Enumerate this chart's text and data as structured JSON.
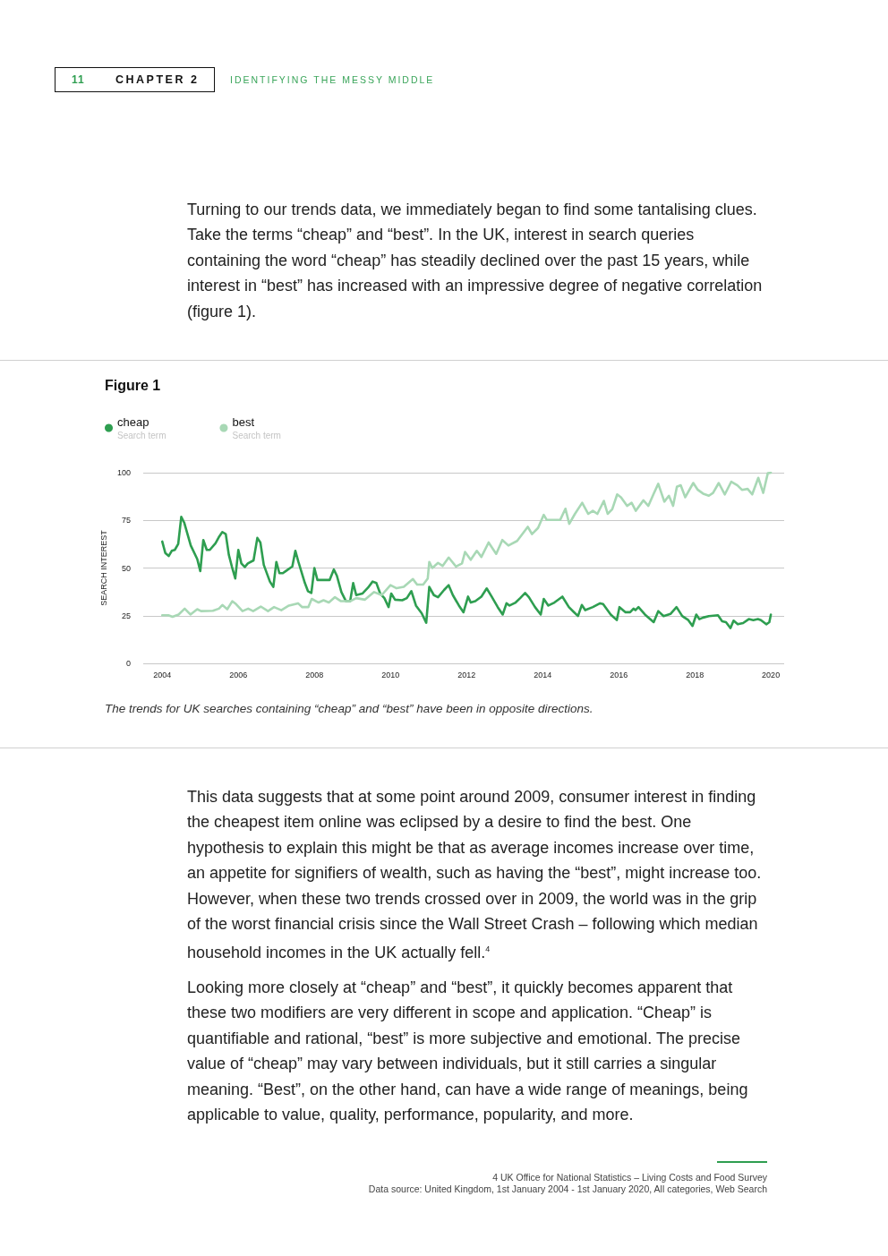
{
  "chart_data": {
    "type": "line",
    "title": "Figure 1",
    "ylabel": "SEARCH INTEREST",
    "xlim": [
      2003.5,
      2020.35
    ],
    "xticks": [
      2004,
      2006,
      2008,
      2010,
      2012,
      2014,
      2016,
      2018,
      2020
    ],
    "ylim": [
      0,
      100
    ],
    "yticks": [
      0,
      25,
      50,
      75,
      100
    ],
    "grid": "y",
    "legend": "top left",
    "marker": "none",
    "line_style": "solid",
    "annotations": [
      "11",
      "CHAPTER 2",
      "IDENTIFYING THE MESSY MIDDLE",
      "Turning to our trends data, we immediately began to find some tantalising clues. Take the terms “cheap” and “best”. In the UK, interest in search queries containing the word “cheap” has steadily declined over the past 15 years, while interest in “best” has increased with an impressive degree of negative correlation (figure 1).",
      "Search term",
      "Search term",
      "The trends for UK searches containing “cheap” and “best” have been in opposite directions.",
      "This data suggests that at some point around 2009, consumer interest in finding the cheapest item online was eclipsed by a desire to find the best. One hypothesis to explain this might be that as average incomes increase over time, an appetite for signifiers of wealth, such as having the “best”, might increase too. However, when these two trends crossed over in 2009, the world was in the grip of the worst financial crisis since the Wall Street Crash – following which median household incomes in the UK actually fell.$^{4}$",
      "Looking more closely at “cheap” and “best”, it quickly becomes apparent that these two modifiers are very different in scope and application. “Cheap” is quantifiable and rational, “best” is more subjective and emotional. The precise value of “cheap” may vary between individuals, but it still carries a singular meaning. “Best”, on the other hand, can have a wide range of meanings, being applicable to value, quality, performance, popularity, and more.",
      "4 UK Office for National Statistics – Living Costs and Food Survey",
      "Data source: United Kingdom, 1st January 2004 - 1st January 2020, All categories, Web Search"
    ],
    "series": [
      {
        "name": "cheap",
        "color": "#2e9e50",
        "x": [
          2004.0,
          2004.08,
          2004.17,
          2004.25,
          2004.33,
          2004.42,
          2004.5,
          2004.58,
          2004.75,
          2004.92,
          2005.0,
          2005.08,
          2005.17,
          2005.25,
          2005.4,
          2005.5,
          2005.58,
          2005.67,
          2005.75,
          2005.83,
          2005.92,
          2006.0,
          2006.08,
          2006.17,
          2006.25,
          2006.4,
          2006.5,
          2006.58,
          2006.67,
          2006.83,
          2006.92,
          2007.0,
          2007.08,
          2007.17,
          2007.25,
          2007.42,
          2007.5,
          2007.58,
          2007.75,
          2007.83,
          2007.92,
          2008.0,
          2008.08,
          2008.25,
          2008.4,
          2008.51,
          2008.59,
          2008.71,
          2008.83,
          2008.94,
          2009.02,
          2009.1,
          2009.26,
          2009.41,
          2009.53,
          2009.63,
          2009.73,
          2009.84,
          2009.95,
          2010.02,
          2010.12,
          2010.31,
          2010.43,
          2010.55,
          2010.67,
          2010.82,
          2010.94,
          2011.02,
          2011.14,
          2011.25,
          2011.41,
          2011.53,
          2011.64,
          2011.8,
          2011.92,
          2012.04,
          2012.11,
          2012.23,
          2012.39,
          2012.53,
          2012.66,
          2012.82,
          2012.95,
          2013.05,
          2013.13,
          2013.29,
          2013.41,
          2013.54,
          2013.64,
          2013.8,
          2013.95,
          2014.03,
          2014.15,
          2014.31,
          2014.52,
          2014.69,
          2014.81,
          2014.93,
          2015.03,
          2015.12,
          2015.32,
          2015.51,
          2015.59,
          2015.79,
          2015.95,
          2016.02,
          2016.18,
          2016.3,
          2016.39,
          2016.44,
          2016.52,
          2016.69,
          2016.92,
          2017.04,
          2017.18,
          2017.36,
          2017.52,
          2017.67,
          2017.83,
          2017.94,
          2018.04,
          2018.12,
          2018.22,
          2018.37,
          2018.61,
          2018.72,
          2018.82,
          2018.94,
          2019.02,
          2019.13,
          2019.27,
          2019.42,
          2019.54,
          2019.66,
          2019.74,
          2019.88,
          2019.96,
          2020.0
        ],
        "values": [
          63.9,
          57.9,
          56.3,
          59,
          59.5,
          62.6,
          76.8,
          73.7,
          61.8,
          54.7,
          48.4,
          64.7,
          59.5,
          59.5,
          63,
          66.6,
          68.9,
          67.8,
          57,
          50.8,
          44.5,
          59.5,
          52.4,
          50.5,
          52.4,
          54,
          65.8,
          63.4,
          51.6,
          42.9,
          40.1,
          53.2,
          47.3,
          47.3,
          48.4,
          50.8,
          59,
          53.2,
          42.1,
          37.9,
          36.9,
          50,
          43.7,
          43.7,
          43.7,
          49.2,
          46,
          37.4,
          32.6,
          32.6,
          42.1,
          35.8,
          36.6,
          39.7,
          42.9,
          42.1,
          36.6,
          34.2,
          29.5,
          36.6,
          33.4,
          33.1,
          34.2,
          37.9,
          30.3,
          26.3,
          21.3,
          40.1,
          35.8,
          34.7,
          38.5,
          41,
          35.8,
          30.3,
          26.8,
          35,
          31.9,
          32.6,
          35,
          39.3,
          35,
          29.5,
          25.6,
          31.5,
          30.3,
          31.9,
          34.2,
          36.9,
          34.7,
          29.5,
          25.6,
          33.8,
          30.3,
          31.9,
          35,
          29.5,
          27.1,
          24.8,
          30.6,
          27.9,
          29.5,
          31.5,
          31.1,
          25.6,
          22.7,
          29.5,
          26.8,
          26.8,
          28.7,
          27.9,
          29.5,
          25.6,
          21.6,
          27.4,
          24.8,
          25.9,
          29.5,
          24.8,
          22.7,
          19.6,
          25.6,
          23.2,
          24,
          24.8,
          25.2,
          22.1,
          21.6,
          18.5,
          22.4,
          20.5,
          21.1,
          23.2,
          22.7,
          23.2,
          22.7,
          20.5,
          21.6,
          25.6
        ]
      },
      {
        "name": "best",
        "color": "#a8d8b5",
        "x": [
          2004.0,
          2004.16,
          2004.27,
          2004.43,
          2004.59,
          2004.74,
          2004.92,
          2005.02,
          2005.33,
          2005.49,
          2005.58,
          2005.71,
          2005.84,
          2005.94,
          2006.11,
          2006.26,
          2006.39,
          2006.59,
          2006.78,
          2006.94,
          2007.13,
          2007.33,
          2007.57,
          2007.68,
          2007.84,
          2007.93,
          2008.11,
          2008.24,
          2008.38,
          2008.54,
          2008.7,
          2008.79,
          2008.94,
          2009.1,
          2009.33,
          2009.57,
          2009.77,
          2010.0,
          2010.16,
          2010.35,
          2010.59,
          2010.7,
          2010.86,
          2010.98,
          2011.02,
          2011.1,
          2011.25,
          2011.37,
          2011.53,
          2011.72,
          2011.88,
          2011.96,
          2012.11,
          2012.27,
          2012.39,
          2012.58,
          2012.78,
          2012.94,
          2013.1,
          2013.33,
          2013.61,
          2013.72,
          2013.88,
          2014.03,
          2014.11,
          2014.46,
          2014.6,
          2014.7,
          2014.85,
          2015.04,
          2015.2,
          2015.32,
          2015.44,
          2015.61,
          2015.71,
          2015.83,
          2015.96,
          2016.06,
          2016.22,
          2016.34,
          2016.45,
          2016.65,
          2016.78,
          2016.92,
          2017.04,
          2017.2,
          2017.32,
          2017.43,
          2017.53,
          2017.63,
          2017.75,
          2017.96,
          2018.08,
          2018.22,
          2018.37,
          2018.48,
          2018.63,
          2018.79,
          2018.96,
          2019.12,
          2019.24,
          2019.39,
          2019.51,
          2019.67,
          2019.8,
          2019.92,
          2020.0
        ],
        "values": [
          25.2,
          25.2,
          24.4,
          25.6,
          28.7,
          25.6,
          28.4,
          27.4,
          27.6,
          28.7,
          30.6,
          28.4,
          32.6,
          31.1,
          27.4,
          28.7,
          27.4,
          29.8,
          27.4,
          29.5,
          27.9,
          30.3,
          31.5,
          29.5,
          29.5,
          33.8,
          31.9,
          33.1,
          31.9,
          34.7,
          32.6,
          32.6,
          32.6,
          34.2,
          33.4,
          37.4,
          35.8,
          41,
          39.4,
          40.1,
          44.2,
          41.3,
          41.3,
          44.5,
          53.2,
          50,
          52.7,
          51.1,
          55.5,
          50.8,
          52.4,
          58.4,
          54.3,
          59,
          55.8,
          63.4,
          57.4,
          64.7,
          61.8,
          64.2,
          71.6,
          67.8,
          71,
          77.9,
          75.2,
          75.2,
          81.1,
          73.2,
          78.4,
          84.2,
          78.4,
          80,
          78.4,
          85.2,
          78.4,
          80.8,
          88.6,
          87.1,
          82.6,
          84.2,
          80,
          85.5,
          82.6,
          89,
          94.2,
          84.8,
          87.9,
          82.6,
          92.6,
          93.4,
          87.1,
          94.6,
          91,
          89,
          87.9,
          89.4,
          94.6,
          88.6,
          95.3,
          93.4,
          91,
          91.5,
          88.6,
          97.3,
          89.4,
          99.7,
          100
        ]
      }
    ]
  }
}
